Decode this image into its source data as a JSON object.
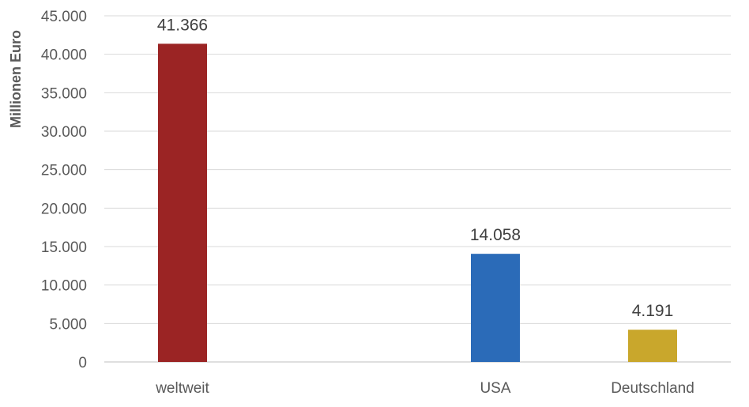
{
  "chart_data": {
    "type": "bar",
    "categories": [
      "weltweit",
      "USA",
      "Deutschland"
    ],
    "values": [
      41366,
      14058,
      4191
    ],
    "data_labels": [
      "41.366",
      "14.058",
      "4.191"
    ],
    "colors": [
      "#9b2424",
      "#2b6bb8",
      "#c9a72c"
    ],
    "title": "",
    "xlabel": "",
    "ylabel": "Millionen Euro",
    "ylim": [
      0,
      45000
    ],
    "y_ticks": [
      0,
      5000,
      10000,
      15000,
      20000,
      25000,
      30000,
      35000,
      40000,
      45000
    ],
    "y_tick_labels": [
      "0",
      "5.000",
      "10.000",
      "15.000",
      "20.000",
      "25.000",
      "30.000",
      "35.000",
      "40.000",
      "45.000"
    ],
    "grid": true,
    "legend": "none"
  }
}
